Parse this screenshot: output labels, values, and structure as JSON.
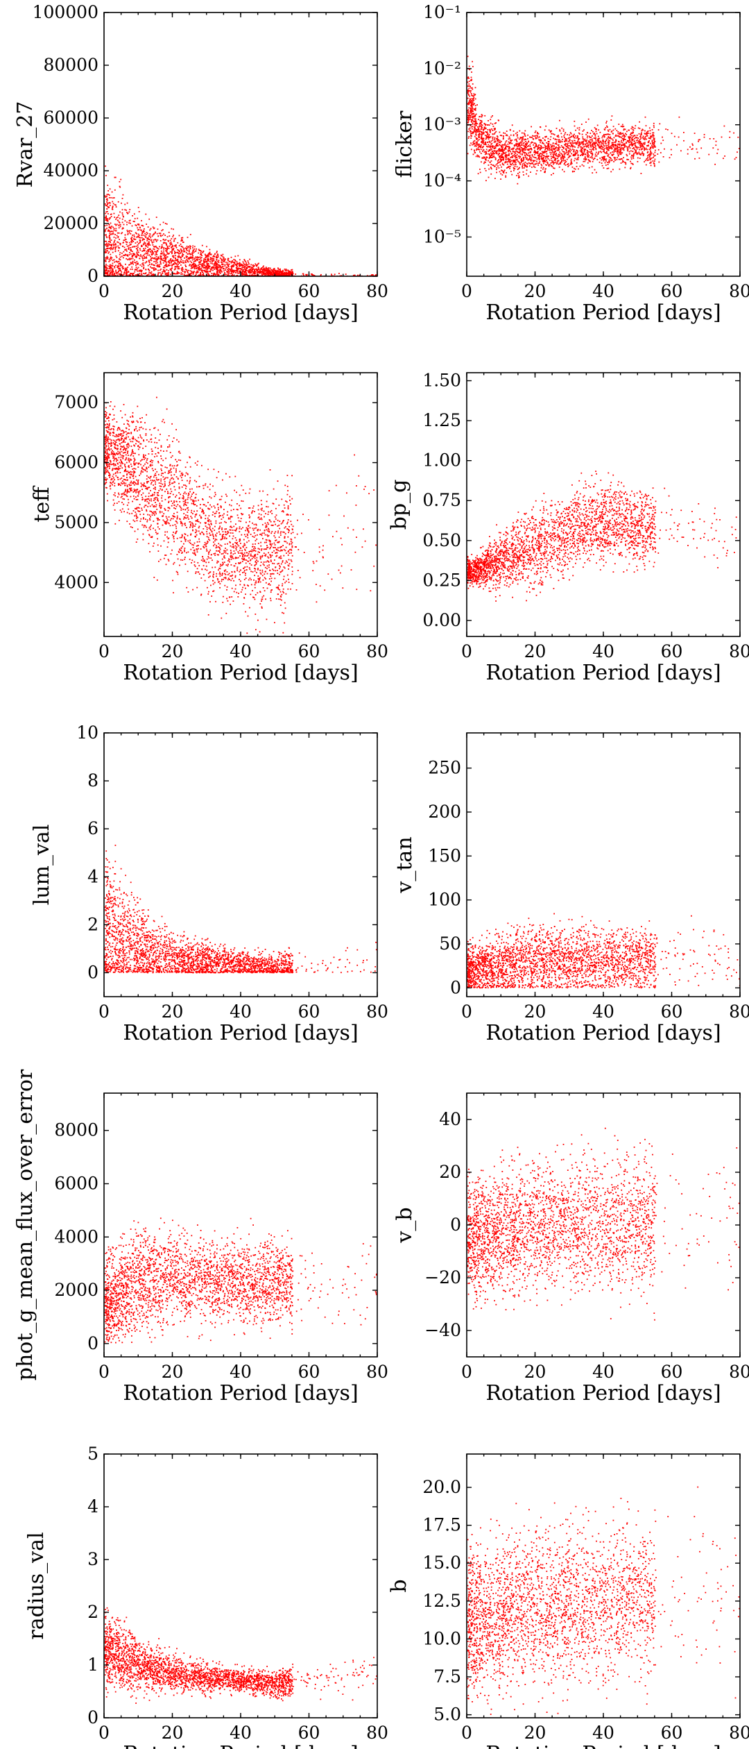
{
  "chart_data": [
    {
      "id": "rvar",
      "type": "scatter",
      "xlabel": "Rotation Period [days]",
      "ylabel": "Rvar_27",
      "xlim": [
        0,
        80
      ],
      "ylim": [
        0,
        100000
      ],
      "yscale": "linear",
      "xticks": [
        {
          "v": 0,
          "label": "0"
        },
        {
          "v": 20,
          "label": "20"
        },
        {
          "v": 40,
          "label": "40"
        },
        {
          "v": 60,
          "label": "60"
        },
        {
          "v": 80,
          "label": "80"
        }
      ],
      "yticks": [
        {
          "v": 0,
          "label": "0"
        },
        {
          "v": 20000,
          "label": "20000"
        },
        {
          "v": 40000,
          "label": "40000"
        },
        {
          "v": 60000,
          "label": "60000"
        },
        {
          "v": 80000,
          "label": "80000"
        },
        {
          "v": 100000,
          "label": "100000"
        }
      ],
      "color": "#ff0000",
      "trend": [
        [
          1,
          10000
        ],
        [
          10,
          9000
        ],
        [
          20,
          7000
        ],
        [
          30,
          4500
        ],
        [
          40,
          2500
        ],
        [
          50,
          1200
        ],
        [
          60,
          500
        ],
        [
          70,
          300
        ],
        [
          80,
          200
        ]
      ],
      "spread": [
        [
          1,
          18000
        ],
        [
          10,
          10000
        ],
        [
          20,
          7000
        ],
        [
          30,
          4000
        ],
        [
          40,
          2500
        ],
        [
          50,
          1200
        ],
        [
          60,
          600
        ],
        [
          80,
          300
        ]
      ]
    },
    {
      "id": "flicker",
      "type": "scatter",
      "xlabel": "Rotation Period [days]",
      "ylabel": "flicker",
      "xlim": [
        0,
        80
      ],
      "ylim": [
        2e-06,
        0.1
      ],
      "yscale": "log",
      "xticks": [
        {
          "v": 0,
          "label": "0"
        },
        {
          "v": 20,
          "label": "20"
        },
        {
          "v": 40,
          "label": "40"
        },
        {
          "v": 60,
          "label": "60"
        },
        {
          "v": 80,
          "label": "80"
        }
      ],
      "yticks": [
        {
          "v": 1e-05,
          "label": "10⁻⁵"
        },
        {
          "v": 0.0001,
          "label": "10⁻⁴"
        },
        {
          "v": 0.001,
          "label": "10⁻³"
        },
        {
          "v": 0.01,
          "label": "10⁻²"
        },
        {
          "v": 0.1,
          "label": "10⁻¹"
        }
      ],
      "color": "#ff0000",
      "trend": [
        [
          0.5,
          0.0025
        ],
        [
          3,
          0.0006
        ],
        [
          10,
          0.0003
        ],
        [
          20,
          0.00033
        ],
        [
          30,
          0.00037
        ],
        [
          40,
          0.0004
        ],
        [
          60,
          0.00045
        ],
        [
          80,
          0.0005
        ]
      ],
      "spread": [
        [
          0.5,
          0.5
        ],
        [
          3,
          0.35
        ],
        [
          10,
          0.28
        ],
        [
          40,
          0.25
        ],
        [
          80,
          0.25
        ]
      ]
    },
    {
      "id": "teff",
      "type": "scatter",
      "xlabel": "Rotation Period [days]",
      "ylabel": "teff",
      "xlim": [
        0,
        80
      ],
      "ylim": [
        3100,
        7500
      ],
      "yscale": "linear",
      "xticks": [
        {
          "v": 0,
          "label": "0"
        },
        {
          "v": 20,
          "label": "20"
        },
        {
          "v": 40,
          "label": "40"
        },
        {
          "v": 60,
          "label": "60"
        },
        {
          "v": 80,
          "label": "80"
        }
      ],
      "yticks": [
        {
          "v": 4000,
          "label": "4000"
        },
        {
          "v": 5000,
          "label": "5000"
        },
        {
          "v": 6000,
          "label": "6000"
        },
        {
          "v": 7000,
          "label": "7000"
        }
      ],
      "color": "#ff0000",
      "trend": [
        [
          1,
          6200
        ],
        [
          10,
          5800
        ],
        [
          20,
          5300
        ],
        [
          30,
          4800
        ],
        [
          40,
          4500
        ],
        [
          50,
          4500
        ],
        [
          80,
          4800
        ]
      ],
      "spread": [
        [
          1,
          500
        ],
        [
          10,
          700
        ],
        [
          20,
          800
        ],
        [
          40,
          650
        ],
        [
          80,
          800
        ]
      ]
    },
    {
      "id": "bpg",
      "type": "scatter",
      "xlabel": "Rotation Period [days]",
      "ylabel": "bp_g",
      "xlim": [
        0,
        80
      ],
      "ylim": [
        -0.1,
        1.55
      ],
      "yscale": "linear",
      "xticks": [
        {
          "v": 0,
          "label": "0"
        },
        {
          "v": 20,
          "label": "20"
        },
        {
          "v": 40,
          "label": "40"
        },
        {
          "v": 60,
          "label": "60"
        },
        {
          "v": 80,
          "label": "80"
        }
      ],
      "yticks": [
        {
          "v": 0,
          "label": "0.00"
        },
        {
          "v": 0.25,
          "label": "0.25"
        },
        {
          "v": 0.5,
          "label": "0.50"
        },
        {
          "v": 0.75,
          "label": "0.75"
        },
        {
          "v": 1.0,
          "label": "1.00"
        },
        {
          "v": 1.25,
          "label": "1.25"
        },
        {
          "v": 1.5,
          "label": "1.50"
        }
      ],
      "color": "#ff0000",
      "trend": [
        [
          1,
          0.3
        ],
        [
          10,
          0.38
        ],
        [
          20,
          0.46
        ],
        [
          30,
          0.54
        ],
        [
          40,
          0.62
        ],
        [
          60,
          0.55
        ],
        [
          80,
          0.5
        ]
      ],
      "spread": [
        [
          1,
          0.05
        ],
        [
          10,
          0.12
        ],
        [
          20,
          0.18
        ],
        [
          40,
          0.18
        ],
        [
          80,
          0.12
        ]
      ]
    },
    {
      "id": "lum",
      "type": "scatter",
      "xlabel": "Rotation Period [days]",
      "ylabel": "lum_val",
      "xlim": [
        0,
        80
      ],
      "ylim": [
        -1,
        10
      ],
      "yscale": "linear",
      "xticks": [
        {
          "v": 0,
          "label": "0"
        },
        {
          "v": 20,
          "label": "20"
        },
        {
          "v": 40,
          "label": "40"
        },
        {
          "v": 60,
          "label": "60"
        },
        {
          "v": 80,
          "label": "80"
        }
      ],
      "yticks": [
        {
          "v": 0,
          "label": "0"
        },
        {
          "v": 2,
          "label": "2"
        },
        {
          "v": 4,
          "label": "4"
        },
        {
          "v": 6,
          "label": "6"
        },
        {
          "v": 8,
          "label": "8"
        },
        {
          "v": 10,
          "label": "10"
        }
      ],
      "color": "#ff0000",
      "trend": [
        [
          1,
          1.6
        ],
        [
          10,
          1.0
        ],
        [
          20,
          0.6
        ],
        [
          30,
          0.45
        ],
        [
          40,
          0.3
        ],
        [
          50,
          0.2
        ],
        [
          80,
          0.3
        ]
      ],
      "spread": [
        [
          1,
          2.5
        ],
        [
          10,
          1.3
        ],
        [
          20,
          0.7
        ],
        [
          40,
          0.4
        ],
        [
          80,
          0.6
        ]
      ]
    },
    {
      "id": "vtan",
      "type": "scatter",
      "xlabel": "Rotation Period [days]",
      "ylabel": "v_tan",
      "xlim": [
        0,
        80
      ],
      "ylim": [
        -10,
        290
      ],
      "yscale": "linear",
      "xticks": [
        {
          "v": 0,
          "label": "0"
        },
        {
          "v": 20,
          "label": "20"
        },
        {
          "v": 40,
          "label": "40"
        },
        {
          "v": 60,
          "label": "60"
        },
        {
          "v": 80,
          "label": "80"
        }
      ],
      "yticks": [
        {
          "v": 0,
          "label": "0"
        },
        {
          "v": 50,
          "label": "50"
        },
        {
          "v": 100,
          "label": "100"
        },
        {
          "v": 150,
          "label": "150"
        },
        {
          "v": 200,
          "label": "200"
        },
        {
          "v": 250,
          "label": "250"
        }
      ],
      "color": "#ff0000",
      "trend": [
        [
          1,
          20
        ],
        [
          10,
          25
        ],
        [
          20,
          30
        ],
        [
          30,
          32
        ],
        [
          40,
          30
        ],
        [
          80,
          35
        ]
      ],
      "spread": [
        [
          1,
          20
        ],
        [
          10,
          25
        ],
        [
          20,
          28
        ],
        [
          40,
          25
        ],
        [
          80,
          30
        ]
      ]
    },
    {
      "id": "phot",
      "type": "scatter",
      "xlabel": "Rotation Period [days]",
      "ylabel": "phot_g_mean_flux_over_error",
      "xlim": [
        0,
        80
      ],
      "ylim": [
        -500,
        9400
      ],
      "yscale": "linear",
      "xticks": [
        {
          "v": 0,
          "label": "0"
        },
        {
          "v": 20,
          "label": "20"
        },
        {
          "v": 40,
          "label": "40"
        },
        {
          "v": 60,
          "label": "60"
        },
        {
          "v": 80,
          "label": "80"
        }
      ],
      "yticks": [
        {
          "v": 0,
          "label": "0"
        },
        {
          "v": 2000,
          "label": "2000"
        },
        {
          "v": 4000,
          "label": "4000"
        },
        {
          "v": 6000,
          "label": "6000"
        },
        {
          "v": 8000,
          "label": "8000"
        }
      ],
      "color": "#ff0000",
      "trend": [
        [
          1,
          1500
        ],
        [
          10,
          2300
        ],
        [
          20,
          2500
        ],
        [
          30,
          2400
        ],
        [
          40,
          2300
        ],
        [
          80,
          2200
        ]
      ],
      "spread": [
        [
          1,
          1200
        ],
        [
          10,
          1400
        ],
        [
          20,
          1300
        ],
        [
          40,
          1100
        ],
        [
          80,
          1000
        ]
      ]
    },
    {
      "id": "vb",
      "type": "scatter",
      "xlabel": "Rotation Period [days]",
      "ylabel": "v_b",
      "xlim": [
        0,
        80
      ],
      "ylim": [
        -50,
        50
      ],
      "yscale": "linear",
      "xticks": [
        {
          "v": 0,
          "label": "0"
        },
        {
          "v": 20,
          "label": "20"
        },
        {
          "v": 40,
          "label": "40"
        },
        {
          "v": 60,
          "label": "60"
        },
        {
          "v": 80,
          "label": "80"
        }
      ],
      "yticks": [
        {
          "v": -40,
          "label": "−40"
        },
        {
          "v": -20,
          "label": "−20"
        },
        {
          "v": 0,
          "label": "0"
        },
        {
          "v": 20,
          "label": "20"
        },
        {
          "v": 40,
          "label": "40"
        }
      ],
      "color": "#ff0000",
      "trend": [
        [
          1,
          -5
        ],
        [
          10,
          -3
        ],
        [
          20,
          -1
        ],
        [
          30,
          0
        ],
        [
          40,
          0
        ],
        [
          80,
          0
        ]
      ],
      "spread": [
        [
          1,
          15
        ],
        [
          10,
          16
        ],
        [
          20,
          17
        ],
        [
          40,
          17
        ],
        [
          80,
          18
        ]
      ]
    },
    {
      "id": "radius",
      "type": "scatter",
      "xlabel": "Rotation Period [days]",
      "ylabel": "radius_val",
      "xlim": [
        0,
        80
      ],
      "ylim": [
        0,
        5
      ],
      "yscale": "linear",
      "xticks": [
        {
          "v": 0,
          "label": "0"
        },
        {
          "v": 20,
          "label": "20"
        },
        {
          "v": 40,
          "label": "40"
        },
        {
          "v": 60,
          "label": "60"
        },
        {
          "v": 80,
          "label": "80"
        }
      ],
      "yticks": [
        {
          "v": 0,
          "label": "0"
        },
        {
          "v": 1,
          "label": "1"
        },
        {
          "v": 2,
          "label": "2"
        },
        {
          "v": 3,
          "label": "3"
        },
        {
          "v": 4,
          "label": "4"
        },
        {
          "v": 5,
          "label": "5"
        }
      ],
      "color": "#ff0000",
      "trend": [
        [
          1,
          1.3
        ],
        [
          10,
          1.0
        ],
        [
          20,
          0.85
        ],
        [
          30,
          0.75
        ],
        [
          40,
          0.7
        ],
        [
          50,
          0.65
        ],
        [
          80,
          0.8
        ]
      ],
      "spread": [
        [
          1,
          0.5
        ],
        [
          10,
          0.35
        ],
        [
          20,
          0.25
        ],
        [
          40,
          0.15
        ],
        [
          80,
          0.3
        ]
      ]
    },
    {
      "id": "b",
      "type": "scatter",
      "xlabel": "Rotation Period [days]",
      "ylabel": "b",
      "xlim": [
        0,
        80
      ],
      "ylim": [
        4.8,
        22.2
      ],
      "yscale": "linear",
      "xticks": [
        {
          "v": 0,
          "label": "0"
        },
        {
          "v": 20,
          "label": "20"
        },
        {
          "v": 40,
          "label": "40"
        },
        {
          "v": 60,
          "label": "60"
        },
        {
          "v": 80,
          "label": "80"
        }
      ],
      "yticks": [
        {
          "v": 5.0,
          "label": "5.0"
        },
        {
          "v": 7.5,
          "label": "7.5"
        },
        {
          "v": 10.0,
          "label": "10.0"
        },
        {
          "v": 12.5,
          "label": "12.5"
        },
        {
          "v": 15.0,
          "label": "15.0"
        },
        {
          "v": 17.5,
          "label": "17.5"
        },
        {
          "v": 20.0,
          "label": "20.0"
        }
      ],
      "color": "#ff0000",
      "trend": [
        [
          1,
          11
        ],
        [
          20,
          12
        ],
        [
          40,
          12.5
        ],
        [
          80,
          13
        ]
      ],
      "spread": [
        [
          1,
          3.5
        ],
        [
          40,
          3.5
        ],
        [
          80,
          3.5
        ]
      ]
    }
  ]
}
